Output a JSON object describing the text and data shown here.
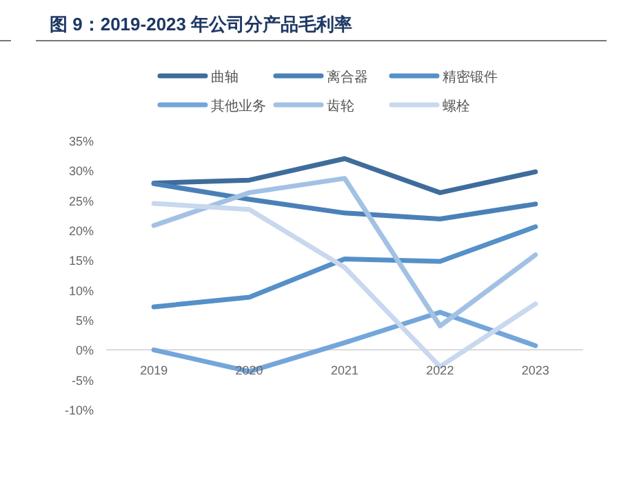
{
  "chart_data": {
    "type": "line",
    "title": "图 9：2019-2023 年公司分产品毛利率",
    "categories": [
      "2019",
      "2020",
      "2021",
      "2022",
      "2023"
    ],
    "series": [
      {
        "name": "曲轴",
        "color": "#3e6c9b",
        "values": [
          27.9,
          28.4,
          32.0,
          26.3,
          29.8
        ]
      },
      {
        "name": "离合器",
        "color": "#4a80b8",
        "values": [
          27.8,
          25.2,
          22.9,
          21.9,
          24.4
        ]
      },
      {
        "name": "精密锻件",
        "color": "#5590c8",
        "values": [
          7.2,
          8.8,
          15.2,
          14.8,
          20.6
        ]
      },
      {
        "name": "其他业务",
        "color": "#73a6da",
        "values": [
          0.0,
          -3.6,
          1.2,
          6.3,
          0.7
        ]
      },
      {
        "name": "齿轮",
        "color": "#a2c1e4",
        "values": [
          20.8,
          26.3,
          28.7,
          4.0,
          15.9
        ]
      },
      {
        "name": "螺栓",
        "color": "#c8d8ee",
        "values": [
          24.5,
          23.5,
          13.8,
          -2.8,
          7.7
        ]
      }
    ],
    "ylim": [
      -10,
      35
    ],
    "yticks": [
      {
        "value": -10,
        "label": "-10%"
      },
      {
        "value": -5,
        "label": "-5%"
      },
      {
        "value": 0,
        "label": "0%"
      },
      {
        "value": 5,
        "label": "5%"
      },
      {
        "value": 10,
        "label": "10%"
      },
      {
        "value": 15,
        "label": "15%"
      },
      {
        "value": 20,
        "label": "20%"
      },
      {
        "value": 25,
        "label": "25%"
      },
      {
        "value": 30,
        "label": "30%"
      },
      {
        "value": 35,
        "label": "35%"
      }
    ],
    "grid": false,
    "legend": "top",
    "marker": "none",
    "line_style": "solid"
  }
}
